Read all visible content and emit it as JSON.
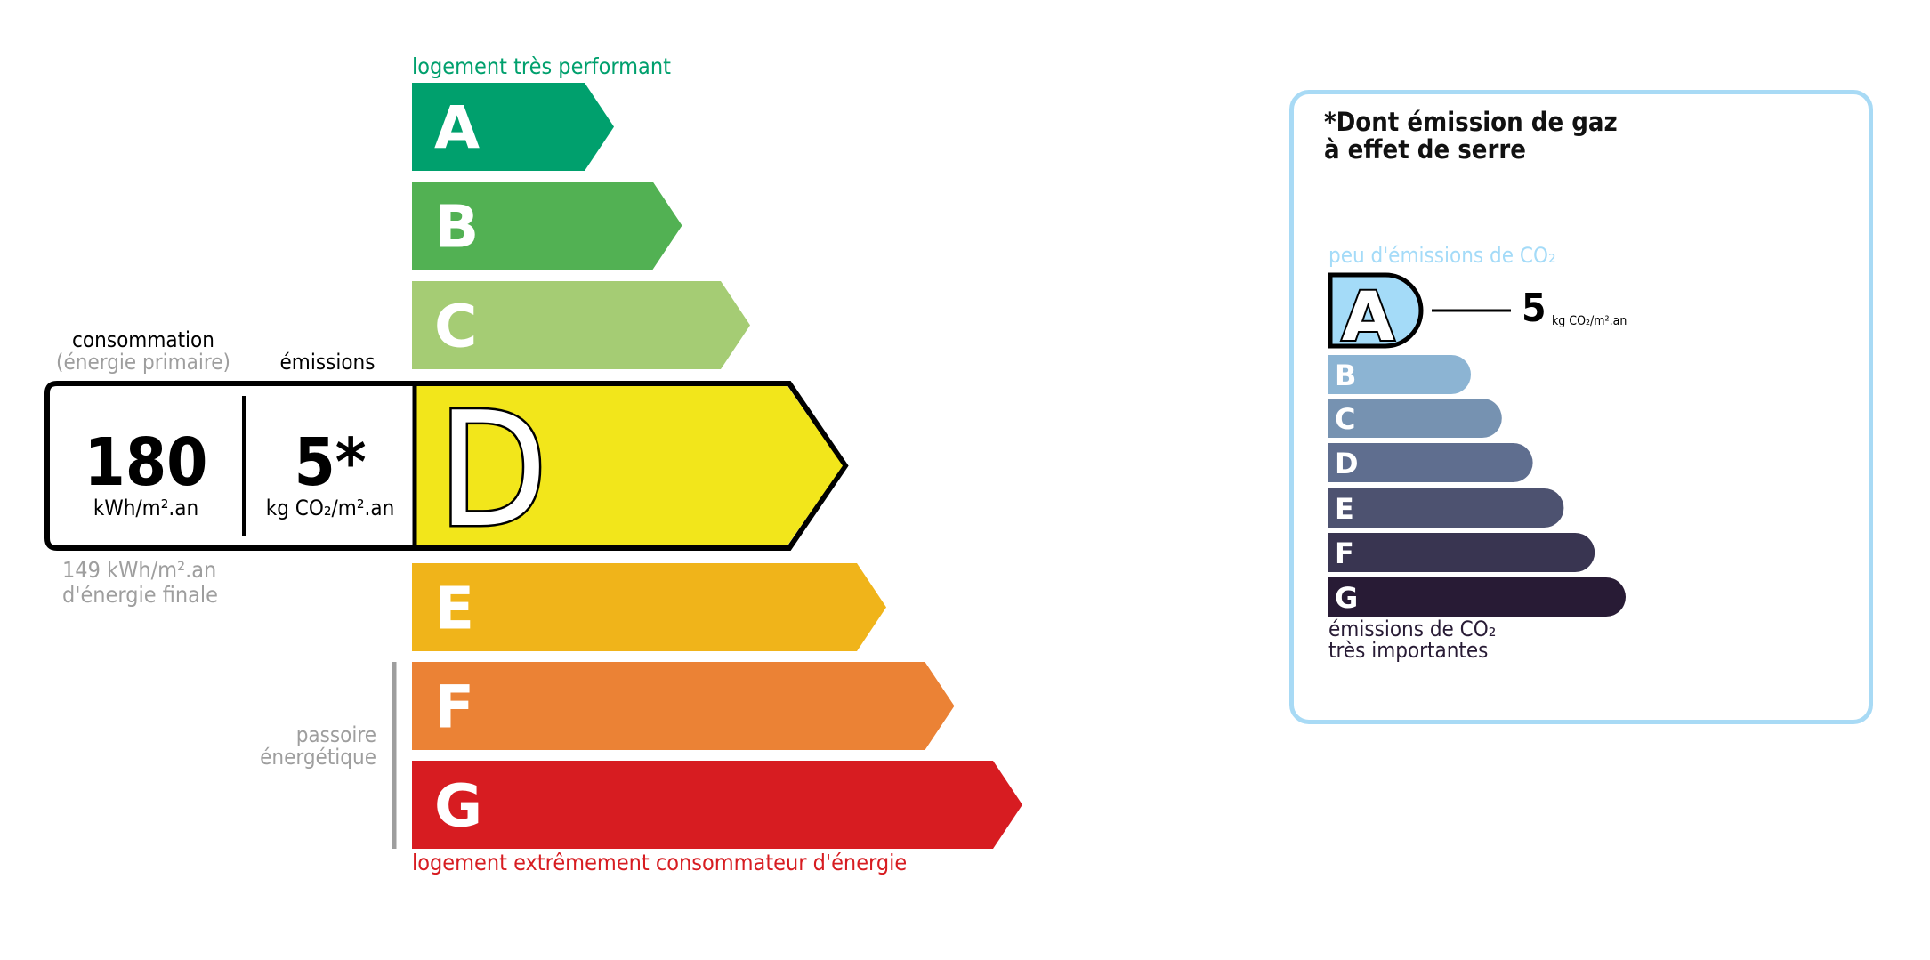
{
  "energy_label": {
    "top_caption": "logement très performant",
    "bottom_caption": "logement extrêmement consommateur d'énergie",
    "passoire_label": [
      "passoire",
      "énergétique"
    ],
    "classes": [
      {
        "letter": "A",
        "color": "#00a06d"
      },
      {
        "letter": "B",
        "color": "#52b153"
      },
      {
        "letter": "C",
        "color": "#a5cc74"
      },
      {
        "letter": "D",
        "color": "#f2e61b"
      },
      {
        "letter": "E",
        "color": "#f0b41a"
      },
      {
        "letter": "F",
        "color": "#eb8235"
      },
      {
        "letter": "G",
        "color": "#d71c21"
      }
    ],
    "current_class": "D",
    "consumption_header": "consommation",
    "consumption_subheader": "(énergie primaire)",
    "emissions_header": "émissions",
    "consumption_value": "180",
    "consumption_unit": "kWh/m².an",
    "emissions_value": "5*",
    "emissions_unit": "kg CO₂/m².an",
    "final_energy_value": "149 kWh/m².an",
    "final_energy_label": "d'énergie finale",
    "top_caption_color": "#00a06d",
    "bottom_caption_color": "#d71c21"
  },
  "ges_label": {
    "title_line1": "*Dont émission de gaz",
    "title_line2": "à effet de serre",
    "top_caption": "peu d'émissions de CO₂",
    "bottom_caption_line1": "émissions de CO₂",
    "bottom_caption_line2": "très importantes",
    "classes": [
      {
        "letter": "A",
        "color": "#a4dbf8"
      },
      {
        "letter": "B",
        "color": "#8cb4d3"
      },
      {
        "letter": "C",
        "color": "#7692b1"
      },
      {
        "letter": "D",
        "color": "#5f6e8f"
      },
      {
        "letter": "E",
        "color": "#4d5270"
      },
      {
        "letter": "F",
        "color": "#393551"
      },
      {
        "letter": "G",
        "color": "#281b35"
      }
    ],
    "current_class": "A",
    "value": "5",
    "unit": "kg CO₂/m².an",
    "border_color": "#a8daf5"
  }
}
